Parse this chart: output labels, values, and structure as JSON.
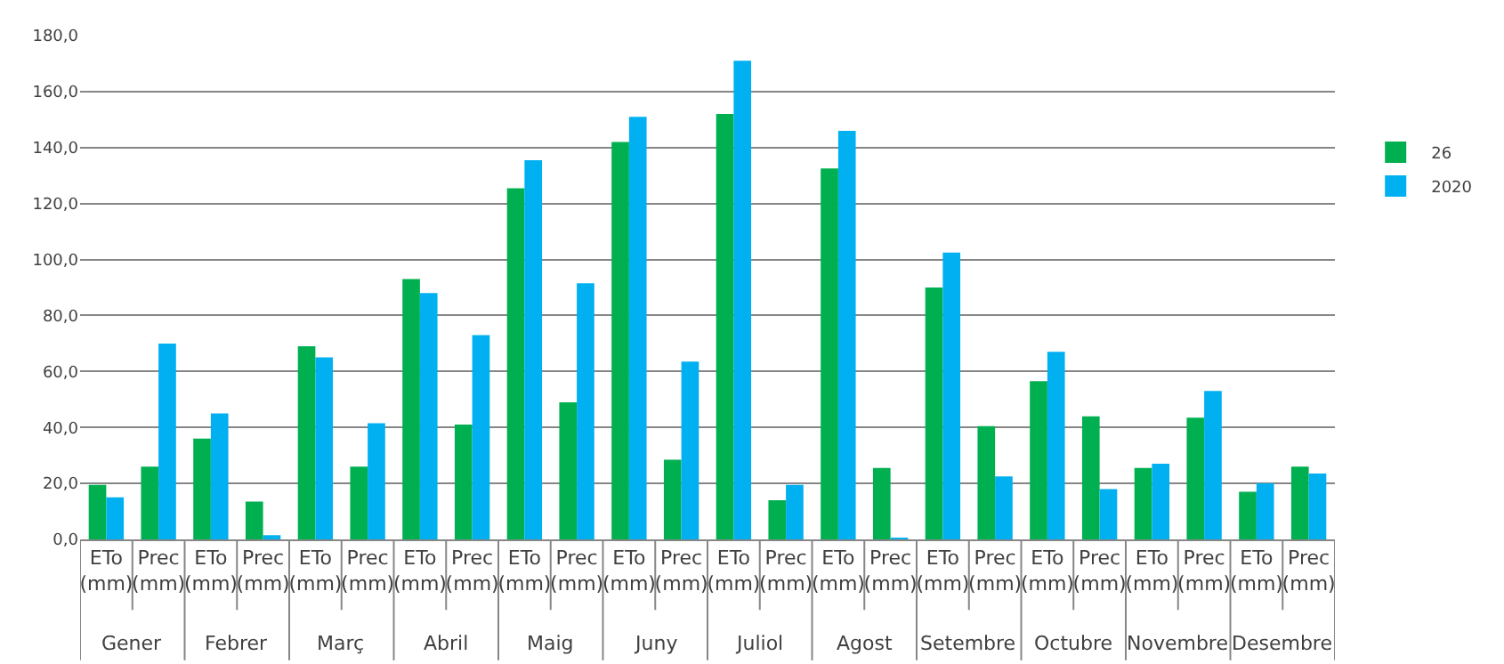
{
  "chart_data": {
    "type": "bar",
    "categories": [
      "ETo (mm)",
      "Prec (mm)",
      "ETo (mm)",
      "Prec (mm)",
      "ETo (mm)",
      "Prec (mm)",
      "ETo (mm)",
      "Prec (mm)",
      "ETo (mm)",
      "Prec (mm)",
      "ETo (mm)",
      "Prec (mm)",
      "ETo (mm)",
      "Prec (mm)",
      "ETo (mm)",
      "Prec (mm)",
      "ETo (mm)",
      "Prec (mm)",
      "ETo (mm)",
      "Prec (mm)",
      "ETo (mm)",
      "Prec (mm)",
      "ETo (mm)",
      "Prec (mm)"
    ],
    "annotations": [
      "Gener",
      "Febrer",
      "Març",
      "Abril",
      "Maig",
      "Juny",
      "Juliol",
      "Agost",
      "Setembre",
      "Octubre",
      "Novembre",
      "Desembre"
    ],
    "series": [
      {
        "name": "26",
        "color": "#00b050",
        "values": [
          19.5,
          26,
          36,
          13.5,
          69,
          26,
          93,
          41,
          125.5,
          49,
          142,
          28.5,
          152,
          14,
          132.5,
          25.5,
          90,
          40.5,
          56.5,
          44,
          25.5,
          43.5,
          17,
          26
        ]
      },
      {
        "name": "2020",
        "color": "#00b0f0",
        "values": [
          15,
          70,
          45,
          1.5,
          65,
          41.5,
          88,
          73,
          135.5,
          91.5,
          151,
          63.5,
          171,
          19.5,
          146,
          0.5,
          102.5,
          22.5,
          67,
          18,
          27,
          53,
          20,
          23.5
        ]
      }
    ],
    "ylim": [
      0,
      180
    ],
    "yticks": [
      {
        "value": 0,
        "label": "0,0"
      },
      {
        "value": 20,
        "label": "20,0"
      },
      {
        "value": 40,
        "label": "40,0"
      },
      {
        "value": 60,
        "label": "60,0"
      },
      {
        "value": 80,
        "label": "80,0"
      },
      {
        "value": 100,
        "label": "100,0"
      },
      {
        "value": 120,
        "label": "120,0"
      },
      {
        "value": 140,
        "label": "140,0"
      },
      {
        "value": 160,
        "label": "160,0"
      },
      {
        "value": 180,
        "label": "180,0"
      }
    ],
    "grid": "y",
    "legend": "right"
  }
}
